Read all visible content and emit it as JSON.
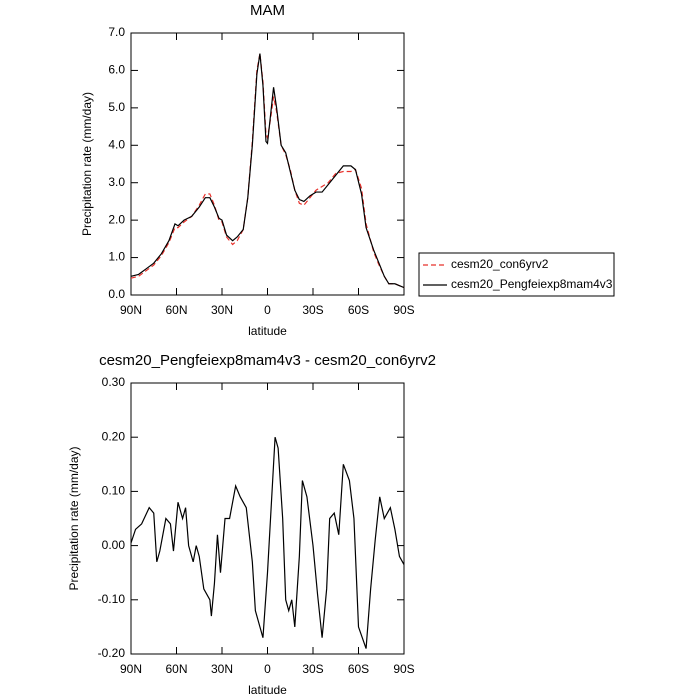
{
  "chart_data": [
    {
      "type": "line",
      "title": "MAM",
      "x_label": "latitude",
      "y_label": "Precipitation rate (mm/day)",
      "x": [
        90,
        85,
        80,
        75,
        70,
        65,
        61,
        59,
        55,
        50,
        45,
        41,
        38,
        35,
        32,
        30,
        27,
        23,
        20,
        16,
        13,
        10,
        7,
        5,
        3,
        1,
        0,
        -2,
        -4,
        -6,
        -9,
        -12,
        -15,
        -18,
        -21,
        -24,
        -28,
        -32,
        -36,
        -40,
        -45,
        -50,
        -55,
        -58,
        -62,
        -65,
        -70,
        -73,
        -77,
        -80,
        -84,
        -87,
        -90
      ],
      "series": [
        {
          "name": "cesm20_con6yrv2",
          "color": "#e8302a",
          "dash": true,
          "values": [
            0.45,
            0.5,
            0.65,
            0.8,
            1.05,
            1.4,
            1.8,
            1.8,
            1.95,
            2.1,
            2.4,
            2.7,
            2.7,
            2.4,
            2.0,
            1.95,
            1.55,
            1.35,
            1.45,
            1.75,
            2.6,
            4.1,
            6.0,
            6.45,
            5.7,
            4.3,
            4.2,
            4.7,
            5.3,
            4.9,
            4.0,
            3.75,
            3.35,
            2.8,
            2.45,
            2.4,
            2.6,
            2.8,
            2.9,
            3.0,
            3.25,
            3.3,
            3.3,
            3.35,
            2.85,
            1.9,
            1.15,
            0.85,
            0.5,
            0.3,
            0.3,
            0.25,
            0.2
          ]
        },
        {
          "name": "cesm20_Pengfeiexp8mam4v3",
          "color": "#000000",
          "dash": false,
          "values": [
            0.5,
            0.55,
            0.7,
            0.85,
            1.1,
            1.45,
            1.9,
            1.85,
            2.0,
            2.1,
            2.35,
            2.6,
            2.6,
            2.35,
            2.05,
            2.0,
            1.6,
            1.45,
            1.55,
            1.75,
            2.6,
            4.0,
            5.9,
            6.45,
            5.6,
            4.1,
            4.05,
            4.8,
            5.55,
            5.0,
            4.0,
            3.8,
            3.3,
            2.8,
            2.55,
            2.5,
            2.65,
            2.75,
            2.75,
            2.95,
            3.2,
            3.45,
            3.45,
            3.35,
            2.7,
            1.8,
            1.2,
            0.9,
            0.5,
            0.3,
            0.3,
            0.25,
            0.2
          ]
        }
      ],
      "xlim": [
        90,
        -90
      ],
      "xticks": [
        {
          "value": 90,
          "label": "90N"
        },
        {
          "value": 60,
          "label": "60N"
        },
        {
          "value": 30,
          "label": "30N"
        },
        0,
        {
          "value": -30,
          "label": "30S"
        },
        {
          "value": -60,
          "label": "60S"
        },
        {
          "value": -90,
          "label": "90S"
        }
      ],
      "ylim": [
        0,
        7
      ],
      "yticks": [
        {
          "value": 0,
          "label": "0.0"
        },
        {
          "value": 1,
          "label": "1.0"
        },
        {
          "value": 2,
          "label": "2.0"
        },
        {
          "value": 3,
          "label": "3.0"
        },
        {
          "value": 4,
          "label": "4.0"
        },
        {
          "value": 5,
          "label": "5.0"
        },
        {
          "value": 6,
          "label": "6.0"
        },
        {
          "value": 7,
          "label": "7.0"
        }
      ],
      "legend": "right"
    },
    {
      "type": "line",
      "title": "cesm20_Pengfeiexp8mam4v3 - cesm20_con6yrv2",
      "x_label": "latitude",
      "y_label": "Precipitation rate (mm/day)",
      "x": [
        90,
        87,
        83,
        78,
        75,
        73,
        71,
        67,
        64,
        62,
        59,
        56,
        54,
        52,
        49,
        47,
        45,
        42,
        38,
        37,
        35,
        33,
        31,
        28,
        25,
        21,
        18,
        14,
        10,
        8,
        5,
        3,
        0,
        -3,
        -5,
        -7,
        -10,
        -12,
        -14,
        -16,
        -18,
        -21,
        -23,
        -26,
        -30,
        -33,
        -36,
        -39,
        -41,
        -44,
        -47,
        -50,
        -54,
        -57,
        -60,
        -65,
        -68,
        -71,
        -74,
        -77,
        -81,
        -84,
        -87,
        -90
      ],
      "series": [
        {
          "color": "#000000",
          "dash": false,
          "values": [
            0.005,
            0.03,
            0.04,
            0.07,
            0.06,
            -0.03,
            -0.01,
            0.05,
            0.04,
            -0.01,
            0.08,
            0.05,
            0.07,
            0.0,
            -0.03,
            0.0,
            -0.02,
            -0.08,
            -0.1,
            -0.13,
            -0.07,
            0.02,
            -0.05,
            0.05,
            0.05,
            0.11,
            0.09,
            0.07,
            -0.03,
            -0.12,
            -0.15,
            -0.17,
            -0.05,
            0.1,
            0.2,
            0.18,
            0.05,
            -0.1,
            -0.12,
            -0.1,
            -0.15,
            -0.02,
            0.12,
            0.09,
            0.0,
            -0.09,
            -0.17,
            -0.08,
            0.05,
            0.06,
            0.02,
            0.15,
            0.12,
            0.05,
            -0.15,
            -0.19,
            -0.08,
            0.01,
            0.09,
            0.05,
            0.07,
            0.03,
            -0.02,
            -0.035
          ]
        }
      ],
      "xlim": [
        90,
        -90
      ],
      "xticks": [
        {
          "value": 90,
          "label": "90N"
        },
        {
          "value": 60,
          "label": "60N"
        },
        {
          "value": 30,
          "label": "30N"
        },
        0,
        {
          "value": -30,
          "label": "30S"
        },
        {
          "value": -60,
          "label": "60S"
        },
        {
          "value": -90,
          "label": "90S"
        }
      ],
      "ylim": [
        -0.2,
        0.3
      ],
      "yticks": [
        {
          "value": -0.2,
          "label": "-0.20"
        },
        {
          "value": -0.1,
          "label": "-0.10"
        },
        {
          "value": 0,
          "label": "0.00"
        },
        {
          "value": 0.1,
          "label": "0.10"
        },
        {
          "value": 0.2,
          "label": "0.20"
        },
        {
          "value": 0.3,
          "label": "0.30"
        }
      ]
    }
  ]
}
